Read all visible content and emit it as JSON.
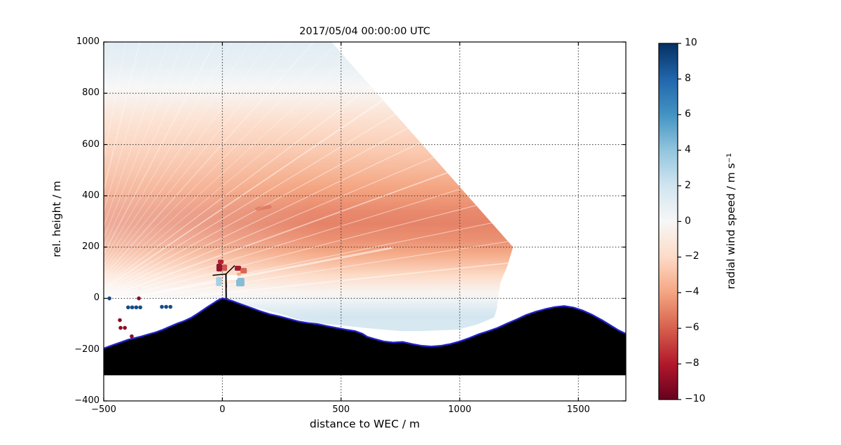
{
  "figure": {
    "title": "2017/05/04 00:00:00 UTC",
    "background_color": "#ffffff"
  },
  "axes": {
    "xlabel": "distance to WEC / m",
    "ylabel": "rel. height / m",
    "xlim": [
      -500,
      1700
    ],
    "ylim": [
      -400,
      1000
    ],
    "xticks": [
      {
        "value": -500,
        "label": "−500"
      },
      {
        "value": 0,
        "label": "0"
      },
      {
        "value": 500,
        "label": "500"
      },
      {
        "value": 1000,
        "label": "1000"
      },
      {
        "value": 1500,
        "label": "1500"
      }
    ],
    "yticks": [
      {
        "value": 1000,
        "label": "1000"
      },
      {
        "value": 800,
        "label": "800"
      },
      {
        "value": 600,
        "label": "600"
      },
      {
        "value": 400,
        "label": "400"
      },
      {
        "value": 200,
        "label": "200"
      },
      {
        "value": 0,
        "label": "0"
      },
      {
        "value": -200,
        "label": "−200"
      },
      {
        "value": -400,
        "label": "−400"
      }
    ],
    "grid": "dotted"
  },
  "colorbar": {
    "label": "radial wind speed / m s⁻¹",
    "min": -10,
    "max": 10,
    "ticks": [
      {
        "value": 10,
        "label": "10"
      },
      {
        "value": 8,
        "label": "8"
      },
      {
        "value": 6,
        "label": "6"
      },
      {
        "value": 4,
        "label": "4"
      },
      {
        "value": 2,
        "label": "2"
      },
      {
        "value": 0,
        "label": "0"
      },
      {
        "value": -2,
        "label": "−2"
      },
      {
        "value": -4,
        "label": "−4"
      },
      {
        "value": -6,
        "label": "−6"
      },
      {
        "value": -8,
        "label": "−8"
      },
      {
        "value": -10,
        "label": "−10"
      }
    ],
    "colormap": "RdBu",
    "anchors": [
      {
        "value": -10,
        "color": "#67001f"
      },
      {
        "value": -8,
        "color": "#b2182b"
      },
      {
        "value": -6,
        "color": "#d6604d"
      },
      {
        "value": -4,
        "color": "#f4a582"
      },
      {
        "value": -2,
        "color": "#fddbc7"
      },
      {
        "value": 0,
        "color": "#f7f7f7"
      },
      {
        "value": 2,
        "color": "#d1e5f0"
      },
      {
        "value": 4,
        "color": "#92c5de"
      },
      {
        "value": 6,
        "color": "#4393c3"
      },
      {
        "value": 8,
        "color": "#2166ac"
      },
      {
        "value": 10,
        "color": "#053061"
      }
    ]
  },
  "chart_data": {
    "type": "heatmap",
    "title": "2017/05/04 00:00:00 UTC",
    "xlabel": "distance to WEC / m",
    "ylabel": "rel. height / m",
    "value_label": "radial wind speed / m s⁻¹",
    "xlim": [
      -500,
      1700
    ],
    "ylim": [
      -400,
      1000
    ],
    "value_range": [
      -10,
      10
    ],
    "scan": {
      "origin": [
        -620,
        -40
      ],
      "boundary": [
        [
          -500,
          1000
        ],
        [
          460,
          1000
        ],
        [
          1225,
          200
        ],
        [
          1200,
          125
        ],
        [
          1172,
          62
        ],
        [
          1161,
          0
        ],
        [
          1157,
          -40
        ],
        [
          1145,
          -74
        ],
        [
          1080,
          -100
        ],
        [
          991,
          -122
        ],
        [
          850,
          -127
        ],
        [
          752,
          -128
        ],
        [
          680,
          -122
        ],
        [
          600,
          -115
        ],
        [
          519,
          -107
        ],
        [
          460,
          -102
        ],
        [
          400,
          -97
        ],
        [
          330,
          -85
        ],
        [
          260,
          -65
        ],
        [
          185,
          -46
        ],
        [
          120,
          -32
        ],
        [
          60,
          -15
        ],
        [
          0,
          0
        ],
        [
          -80,
          3
        ],
        [
          -220,
          5
        ],
        [
          -360,
          7
        ],
        [
          -500,
          8
        ]
      ],
      "profile_heights": [
        1000,
        900,
        820,
        700,
        600,
        500,
        420,
        340,
        290,
        230,
        180,
        130,
        90,
        50,
        20,
        -10,
        -45,
        -75,
        -95
      ],
      "profile_values": [
        1.2,
        0.7,
        0.0,
        -1.6,
        -2.4,
        -3.3,
        -4.1,
        -4.8,
        -5.0,
        -4.6,
        -3.9,
        -2.9,
        -2.0,
        -0.9,
        -0.2,
        0.5,
        1.4,
        1.9,
        1.7
      ]
    },
    "terrain": {
      "fill_color": "#000000",
      "outline_color": "#2222cc",
      "base_height": -300,
      "profile": [
        [
          -500,
          -195
        ],
        [
          -470,
          -185
        ],
        [
          -430,
          -172
        ],
        [
          -400,
          -162
        ],
        [
          -370,
          -155
        ],
        [
          -340,
          -148
        ],
        [
          -310,
          -140
        ],
        [
          -280,
          -132
        ],
        [
          -250,
          -122
        ],
        [
          -220,
          -110
        ],
        [
          -190,
          -98
        ],
        [
          -160,
          -88
        ],
        [
          -130,
          -75
        ],
        [
          -100,
          -57
        ],
        [
          -70,
          -38
        ],
        [
          -40,
          -20
        ],
        [
          -20,
          -8
        ],
        [
          0,
          0
        ],
        [
          20,
          -4
        ],
        [
          40,
          -10
        ],
        [
          70,
          -20
        ],
        [
          100,
          -30
        ],
        [
          130,
          -40
        ],
        [
          160,
          -50
        ],
        [
          200,
          -62
        ],
        [
          240,
          -70
        ],
        [
          280,
          -80
        ],
        [
          320,
          -90
        ],
        [
          360,
          -96
        ],
        [
          400,
          -100
        ],
        [
          440,
          -108
        ],
        [
          480,
          -115
        ],
        [
          520,
          -122
        ],
        [
          560,
          -128
        ],
        [
          590,
          -138
        ],
        [
          610,
          -150
        ],
        [
          640,
          -158
        ],
        [
          680,
          -168
        ],
        [
          720,
          -172
        ],
        [
          760,
          -170
        ],
        [
          800,
          -178
        ],
        [
          840,
          -185
        ],
        [
          880,
          -188
        ],
        [
          920,
          -185
        ],
        [
          960,
          -178
        ],
        [
          1000,
          -168
        ],
        [
          1040,
          -155
        ],
        [
          1080,
          -140
        ],
        [
          1120,
          -128
        ],
        [
          1160,
          -115
        ],
        [
          1200,
          -98
        ],
        [
          1240,
          -82
        ],
        [
          1280,
          -65
        ],
        [
          1320,
          -52
        ],
        [
          1360,
          -42
        ],
        [
          1400,
          -34
        ],
        [
          1440,
          -30
        ],
        [
          1480,
          -36
        ],
        [
          1520,
          -48
        ],
        [
          1560,
          -65
        ],
        [
          1600,
          -85
        ],
        [
          1640,
          -108
        ],
        [
          1670,
          -125
        ],
        [
          1700,
          -138
        ]
      ]
    },
    "turbine": {
      "x": 16,
      "base_height": -5,
      "hub_x": 15,
      "hub_height": 95,
      "blade_tips": [
        [
          52,
          128
        ],
        [
          -41,
          90
        ],
        [
          17,
          43
        ]
      ]
    },
    "scatter_points": [
      {
        "x": -476,
        "y": 0,
        "value": 9
      },
      {
        "x": -352,
        "y": 0,
        "value": -9
      },
      {
        "x": -397,
        "y": -35,
        "value": 9
      },
      {
        "x": -380,
        "y": -35,
        "value": 9
      },
      {
        "x": -363,
        "y": -35,
        "value": 9
      },
      {
        "x": -346,
        "y": -35,
        "value": 9
      },
      {
        "x": -255,
        "y": -33,
        "value": 9
      },
      {
        "x": -237,
        "y": -33,
        "value": 9
      },
      {
        "x": -219,
        "y": -33,
        "value": 9
      },
      {
        "x": -432,
        "y": -85,
        "value": -9
      },
      {
        "x": -429,
        "y": -115,
        "value": -9
      },
      {
        "x": -411,
        "y": -115,
        "value": -9
      },
      {
        "x": -382,
        "y": -148,
        "value": -9
      }
    ],
    "rotor_artifacts": [
      {
        "x": -19,
        "y": 151,
        "w": 24,
        "h": 16,
        "value": -8
      },
      {
        "x": -25,
        "y": 135,
        "w": 24,
        "h": 30,
        "value": -9
      },
      {
        "x": -1,
        "y": 132,
        "w": 21,
        "h": 25,
        "value": -6.5
      },
      {
        "x": 52,
        "y": 127,
        "w": 27,
        "h": 19,
        "value": -8.5
      },
      {
        "x": 76,
        "y": 119,
        "w": 27,
        "h": 22,
        "value": -6
      },
      {
        "x": 61,
        "y": 100,
        "w": 18,
        "h": 11,
        "value": -4
      },
      {
        "x": -27,
        "y": 83,
        "w": 24,
        "h": 35,
        "value": 3.5
      },
      {
        "x": 58,
        "y": 80,
        "w": 35,
        "h": 33,
        "value": 4.5
      },
      {
        "x": 8,
        "y": 91,
        "w": 56,
        "h": 19,
        "value": 0
      }
    ],
    "wake_smudge": {
      "x": 138,
      "y": 360,
      "w": 70,
      "h": 14,
      "value": -5.8,
      "rotation_deg": -10
    }
  }
}
